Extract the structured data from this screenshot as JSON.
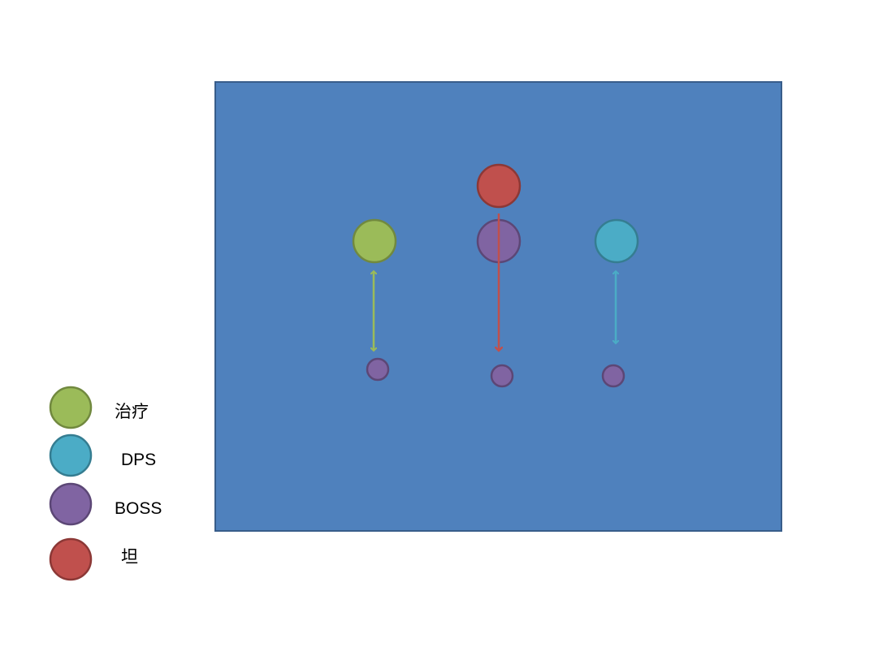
{
  "colors": {
    "field": "#4f81bd",
    "field_border": "#385d8a",
    "healer": "#9bbb59",
    "dps": "#4bacc6",
    "boss": "#8064a2",
    "tank": "#c0504d"
  },
  "legend": [
    {
      "role": "healer",
      "label": "治疗"
    },
    {
      "role": "dps",
      "label": "DPS"
    },
    {
      "role": "boss",
      "label": "BOSS"
    },
    {
      "role": "tank",
      "label": "坦"
    }
  ]
}
